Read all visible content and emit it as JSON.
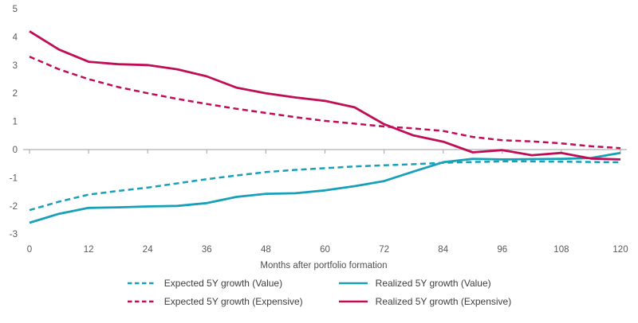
{
  "chart_data": {
    "type": "line",
    "title": "",
    "xlabel": "Months after portfolio formation",
    "ylabel": "",
    "xlim": [
      0,
      120
    ],
    "ylim": [
      -3,
      5
    ],
    "x_ticks": [
      0,
      12,
      24,
      36,
      48,
      60,
      72,
      84,
      96,
      108,
      120
    ],
    "y_ticks": [
      5,
      4,
      3,
      2,
      1,
      0,
      -1,
      -2,
      -3
    ],
    "grid": false,
    "legend_position": "bottom",
    "x": [
      0,
      6,
      12,
      18,
      24,
      30,
      36,
      42,
      48,
      54,
      60,
      66,
      72,
      78,
      84,
      90,
      96,
      102,
      108,
      114,
      120
    ],
    "series": [
      {
        "name": "Expected 5Y growth (Value)",
        "style": "dashed",
        "color": "#18a0b8",
        "values": [
          -2.15,
          -1.85,
          -1.6,
          -1.47,
          -1.35,
          -1.2,
          -1.05,
          -0.92,
          -0.8,
          -0.72,
          -0.66,
          -0.6,
          -0.56,
          -0.52,
          -0.47,
          -0.44,
          -0.42,
          -0.42,
          -0.43,
          -0.44,
          -0.45
        ]
      },
      {
        "name": "Realized 5Y growth (Value)",
        "style": "solid",
        "color": "#18a0b8",
        "values": [
          -2.6,
          -2.28,
          -2.07,
          -2.05,
          -2.02,
          -2.0,
          -1.9,
          -1.68,
          -1.57,
          -1.55,
          -1.45,
          -1.3,
          -1.12,
          -0.78,
          -0.45,
          -0.33,
          -0.35,
          -0.34,
          -0.33,
          -0.3,
          -0.12
        ]
      },
      {
        "name": "Expected 5Y growth (Expensive)",
        "style": "dashed",
        "color": "#c00d56",
        "values": [
          3.3,
          2.85,
          2.5,
          2.22,
          2.0,
          1.8,
          1.62,
          1.45,
          1.3,
          1.15,
          1.02,
          0.92,
          0.82,
          0.75,
          0.66,
          0.45,
          0.33,
          0.29,
          0.22,
          0.12,
          0.05
        ]
      },
      {
        "name": "Realized 5Y growth (Expensive)",
        "style": "solid",
        "color": "#c00d56",
        "values": [
          4.2,
          3.55,
          3.12,
          3.03,
          3.0,
          2.85,
          2.6,
          2.2,
          2.0,
          1.85,
          1.73,
          1.5,
          0.9,
          0.5,
          0.28,
          -0.1,
          -0.02,
          -0.2,
          -0.12,
          -0.32,
          -0.35
        ]
      }
    ],
    "axis_color": "#b0b0b0",
    "tick_text_color": "#58595b",
    "legend_text_color": "#3e3e40"
  }
}
